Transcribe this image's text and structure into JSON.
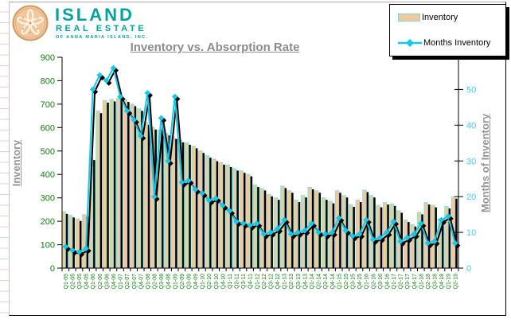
{
  "logo": {
    "name": "ISLAND",
    "line2": "REAL ESTATE",
    "line3": "OF ANNA MARIA ISLAND, INC.",
    "teal": "#00a39c",
    "sand_fill": "#f2c79c",
    "sand_stroke": "#cf9a63"
  },
  "legend": {
    "bar_label": "Inventory",
    "line_label": "Months Inventory"
  },
  "chart_data": {
    "type": "bar+line",
    "title": "Inventory vs. Absorption Rate",
    "grid": "off",
    "legend_position": "top-right",
    "y_left": {
      "label": "Inventory",
      "min": 0,
      "max": 900,
      "tick_step": 100,
      "tick_color": "#0f7d0f"
    },
    "y_right": {
      "label": "Months of Inventory",
      "min": 0,
      "max": 59,
      "ticks": [
        0,
        10,
        20,
        30,
        40,
        50
      ],
      "tick_color": "#3ecfe6"
    },
    "categories": [
      "Q1-05",
      "Q2-05",
      "Q3-05",
      "Q4-05",
      "Q1-06",
      "Q2-06",
      "Q3-06",
      "Q4-06",
      "Q1-07",
      "Q2-07",
      "Q3-07",
      "Q4-07",
      "Q1-08",
      "Q2-08",
      "Q3-08",
      "Q4-08",
      "Q1-09",
      "Q2-09",
      "Q3-09",
      "Q4-09",
      "Q1-10",
      "Q2-10",
      "Q3-10",
      "Q4-10",
      "Q1-11",
      "Q2-11",
      "Q3-11",
      "Q4-11",
      "Q1-12",
      "Q2-12",
      "Q3-12",
      "Q4-12",
      "Q1-13",
      "Q2-13",
      "Q3-13",
      "Q4-13",
      "Q1-14",
      "Q2-14",
      "Q3-14",
      "Q4-14",
      "Q1-15",
      "Q2-15",
      "Q3-15",
      "Q4-15",
      "Q1-16",
      "Q2-16",
      "Q3-16",
      "Q4-16",
      "Q1-17",
      "Q2-17",
      "Q3-17",
      "Q4-17",
      "Q1-18",
      "Q2-18",
      "Q3-18",
      "Q4-18",
      "Q1-19",
      "Q2-19"
    ],
    "series": [
      {
        "name": "Inventory",
        "type": "bar",
        "axis": "left",
        "fill": "#eeca9f",
        "edge": "#8fdfd6",
        "shadow": "#000000",
        "values": [
          240,
          225,
          210,
          228,
          470,
          670,
          715,
          720,
          725,
          718,
          700,
          680,
          620,
          600,
          590,
          575,
          560,
          545,
          535,
          520,
          500,
          480,
          465,
          450,
          440,
          425,
          415,
          400,
          355,
          340,
          315,
          300,
          350,
          330,
          290,
          310,
          345,
          330,
          300,
          285,
          330,
          310,
          270,
          290,
          333,
          310,
          268,
          280,
          274,
          245,
          205,
          186,
          238,
          280,
          268,
          210,
          263,
          305
        ]
      },
      {
        "name": "Months Inventory",
        "type": "line",
        "axis": "right",
        "color": "#12c9ea",
        "marker": "diamond",
        "shadow": "#000000",
        "values": [
          6,
          5,
          4.5,
          5.5,
          50,
          54,
          52.5,
          56,
          48,
          44,
          41.5,
          37,
          49,
          20,
          42,
          30,
          48,
          24,
          24.5,
          22,
          21,
          19,
          19.5,
          17.5,
          16,
          13,
          12.5,
          12,
          12.5,
          9.5,
          10,
          11,
          13.5,
          9.5,
          10,
          10.5,
          12.5,
          10,
          9.5,
          10,
          14,
          10.5,
          9,
          9.5,
          13.5,
          8,
          8.5,
          10,
          13,
          7.5,
          8.5,
          9.5,
          12.5,
          7,
          7.5,
          13.5,
          14.5,
          7
        ]
      }
    ]
  }
}
